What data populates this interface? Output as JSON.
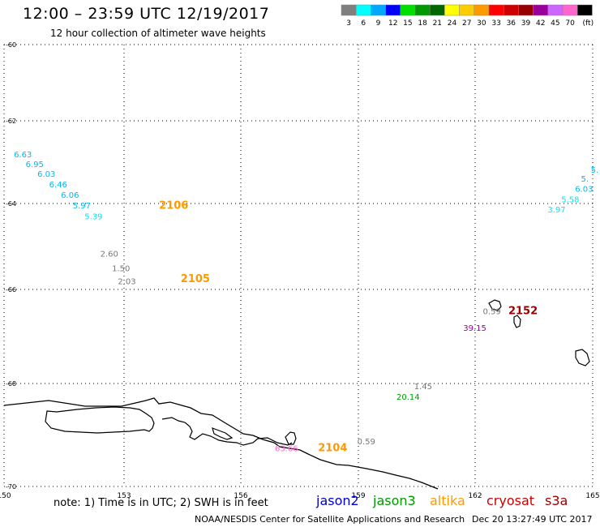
{
  "header": {
    "title": "12:00 – 23:59 UTC 12/19/2017",
    "subtitle": "12 hour collection of altimeter wave heights"
  },
  "colorbar": {
    "colors": [
      "#7f7f7f",
      "#00ffff",
      "#00a8ff",
      "#0000ff",
      "#00e000",
      "#009900",
      "#006600",
      "#ffff00",
      "#ffcc00",
      "#ff9900",
      "#ff0000",
      "#cc0000",
      "#990000",
      "#990099",
      "#cc66ff",
      "#ff66cc",
      "#000000"
    ],
    "labels": [
      "3",
      "6",
      "9",
      "12",
      "15",
      "18",
      "21",
      "24",
      "27",
      "30",
      "33",
      "36",
      "39",
      "42",
      "45",
      "70",
      "(ft)"
    ]
  },
  "axes": {
    "x_ticks": [
      "150",
      "153",
      "156",
      "159",
      "162",
      "165"
    ],
    "y_ticks": [
      "-60",
      "-62",
      "-64",
      "-66",
      "-68",
      "-70"
    ]
  },
  "passes": [
    {
      "label": "2106",
      "color": "#ff9900",
      "lon": 153.95,
      "lat": -63.72
    },
    {
      "label": "2105",
      "color": "#ff9900",
      "lon": 154.5,
      "lat": -65.38
    },
    {
      "label": "2152",
      "color": "#990000",
      "lon": 162.85,
      "lat": -66.1
    },
    {
      "label": "2104",
      "color": "#ff9900",
      "lon": 158.0,
      "lat": -69.2
    }
  ],
  "observations": [
    {
      "value": "6.63",
      "color": "#00b8f0",
      "lon": 150.25,
      "lat": -62.55
    },
    {
      "value": "6.95",
      "color": "#00b8f0",
      "lon": 150.55,
      "lat": -62.77
    },
    {
      "value": "6.03",
      "color": "#00b8f0",
      "lon": 150.85,
      "lat": -62.99
    },
    {
      "value": "6.46",
      "color": "#00b8f0",
      "lon": 151.15,
      "lat": -63.23
    },
    {
      "value": "6.06",
      "color": "#00b8f0",
      "lon": 151.45,
      "lat": -63.47
    },
    {
      "value": "5.97",
      "color": "#00b8f0",
      "lon": 151.75,
      "lat": -63.71
    },
    {
      "value": "5.39",
      "color": "#00e5ff",
      "lon": 152.05,
      "lat": -63.95
    },
    {
      "value": "2.60",
      "color": "#777777",
      "lon": 152.45,
      "lat": -64.8
    },
    {
      "value": "1.50",
      "color": "#777777",
      "lon": 152.75,
      "lat": -65.13
    },
    {
      "value": "2.03",
      "color": "#777777",
      "lon": 152.9,
      "lat": -65.42
    },
    {
      "value": "0.59",
      "color": "#777777",
      "lon": 162.2,
      "lat": -66.1
    },
    {
      "value": "39.15",
      "color": "#990099",
      "lon": 161.7,
      "lat": -66.48
    },
    {
      "value": "1.45",
      "color": "#777777",
      "lon": 160.45,
      "lat": -67.8
    },
    {
      "value": "20.14",
      "color": "#009900",
      "lon": 160.0,
      "lat": -68.04
    },
    {
      "value": "0.59",
      "color": "#777777",
      "lon": 159.0,
      "lat": -69.05
    },
    {
      "value": "63.66",
      "color": "#ff66cc",
      "lon": 156.9,
      "lat": -69.2
    },
    {
      "value": "5.",
      "color": "#00b8f0",
      "lon": 164.95,
      "lat": -62.9
    },
    {
      "value": "5.",
      "color": "#00b8f0",
      "lon": 164.7,
      "lat": -63.1
    },
    {
      "value": "6.03",
      "color": "#00b8f0",
      "lon": 164.55,
      "lat": -63.33
    },
    {
      "value": "5.58",
      "color": "#00e5ff",
      "lon": 164.2,
      "lat": -63.57
    },
    {
      "value": "3.97",
      "color": "#00e5ff",
      "lon": 163.85,
      "lat": -63.8
    }
  ],
  "footer": {
    "note": "note:  1) Time is in UTC;  2) SWH is in feet",
    "satellites": [
      {
        "name": "jason2",
        "color": "#0000cc"
      },
      {
        "name": "jason3",
        "color": "#009900"
      },
      {
        "name": "altika",
        "color": "#ff9900"
      },
      {
        "name": "cryosat",
        "color": "#cc0000"
      },
      {
        "name": "s3a",
        "color": "#990000"
      }
    ],
    "credit": "NOAA/NESDIS Center for Satellite Applications and Research",
    "timestamp": "Dec 20 13:27:49 UTC 2017"
  }
}
